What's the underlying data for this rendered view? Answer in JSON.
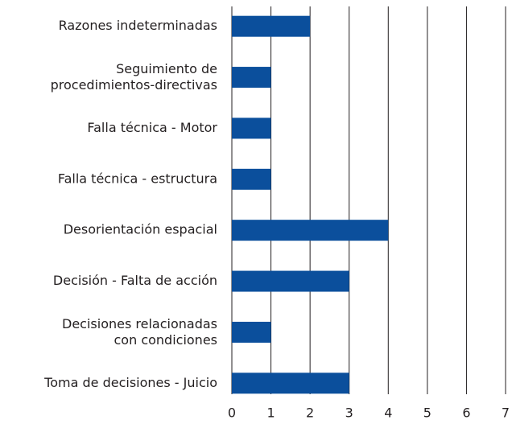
{
  "chart_data": {
    "type": "barh",
    "categories": [
      "Razones indeterminadas",
      "Seguimiento de\nprocedimientos-directivas",
      "Falla técnica -  Motor",
      "Falla técnica -  estructura",
      "Desorientación espacial",
      "Decisión - Falta de acción",
      "Decisiones relacionadas\ncon condiciones",
      "Toma de decisiones - Juicio"
    ],
    "values": [
      2,
      1,
      1,
      1,
      4,
      3,
      1,
      3
    ],
    "color": "#0b4f9c",
    "xlim": [
      0,
      7
    ],
    "xticks": [
      0,
      1,
      2,
      3,
      4,
      5,
      6,
      7
    ],
    "grid": true
  }
}
